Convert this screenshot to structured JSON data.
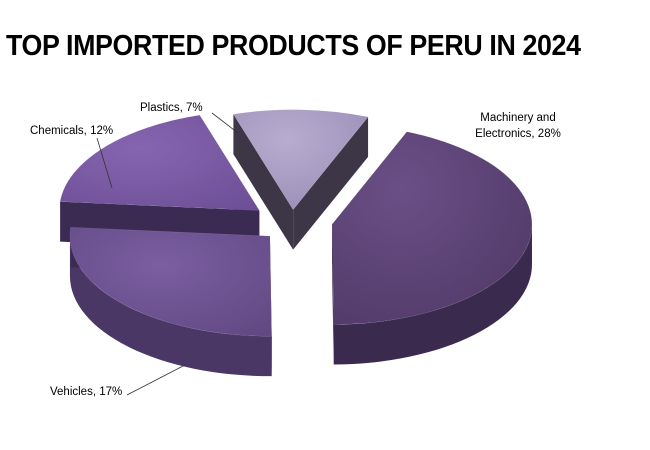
{
  "chart_data": {
    "type": "pie",
    "title": "TOP IMPORTED PRODUCTS OF PERU IN 2024",
    "slices": [
      {
        "label": "Machinery and Electronics",
        "value": 28,
        "display": "Machinery and Electronics, 28%",
        "color": "#5e4577"
      },
      {
        "label": "Vehicles",
        "value": 17,
        "display": "Vehicles, 17%",
        "color": "#6e5392"
      },
      {
        "label": "Chemicals",
        "value": 12,
        "display": "Chemicals, 12%",
        "color": "#7a5aa3"
      },
      {
        "label": "Plastics",
        "value": 7,
        "display": "Plastics, 7%",
        "color": "#a89ac2"
      }
    ],
    "style": "3d-exploded",
    "legend": "none"
  }
}
